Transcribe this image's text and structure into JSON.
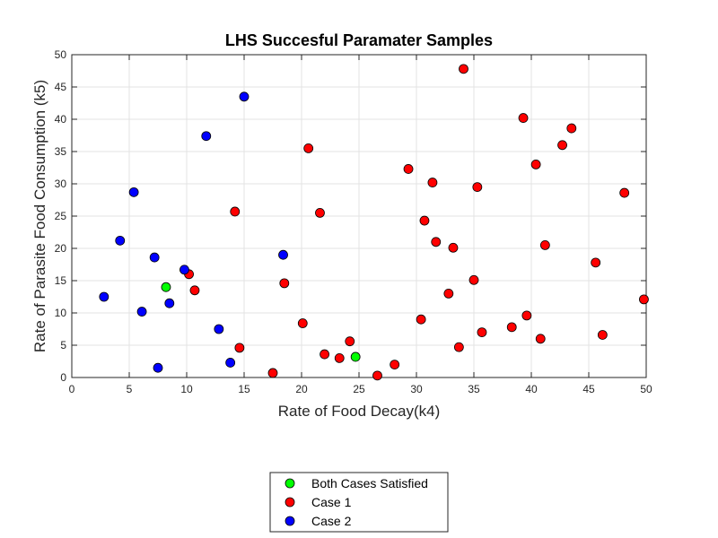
{
  "chart_data": {
    "type": "scatter",
    "title": "LHS Succesful Paramater Samples",
    "xlabel": "Rate of Food Decay(k4)",
    "ylabel": "Rate of Parasite Food Consumption (k5)",
    "xlim": [
      0,
      50
    ],
    "ylim": [
      0,
      50
    ],
    "xticks": [
      0,
      5,
      10,
      15,
      20,
      25,
      30,
      35,
      40,
      45,
      50
    ],
    "yticks": [
      0,
      5,
      10,
      15,
      20,
      25,
      30,
      35,
      40,
      45,
      50
    ],
    "grid": true,
    "legend_position": "bottom-center outside",
    "series": [
      {
        "name": "Both Cases Satisfied",
        "color": "#00ff00",
        "points": [
          [
            8.2,
            14.0
          ],
          [
            24.7,
            3.2
          ]
        ]
      },
      {
        "name": "Case 1",
        "color": "#ff0000",
        "points": [
          [
            10.2,
            16.0
          ],
          [
            10.7,
            13.5
          ],
          [
            14.2,
            25.7
          ],
          [
            14.6,
            4.6
          ],
          [
            17.5,
            0.7
          ],
          [
            18.5,
            14.6
          ],
          [
            20.1,
            8.4
          ],
          [
            20.6,
            35.5
          ],
          [
            21.6,
            25.5
          ],
          [
            22.0,
            3.6
          ],
          [
            23.3,
            3.0
          ],
          [
            24.2,
            5.6
          ],
          [
            26.6,
            0.3
          ],
          [
            28.1,
            2.0
          ],
          [
            29.3,
            32.3
          ],
          [
            30.4,
            9.0
          ],
          [
            30.7,
            24.3
          ],
          [
            31.4,
            30.2
          ],
          [
            31.7,
            21.0
          ],
          [
            32.8,
            13.0
          ],
          [
            33.2,
            20.1
          ],
          [
            33.7,
            4.7
          ],
          [
            34.1,
            47.8
          ],
          [
            35.0,
            15.1
          ],
          [
            35.3,
            29.5
          ],
          [
            35.7,
            7.0
          ],
          [
            38.3,
            7.8
          ],
          [
            39.3,
            40.2
          ],
          [
            39.6,
            9.6
          ],
          [
            40.4,
            33.0
          ],
          [
            40.8,
            6.0
          ],
          [
            41.2,
            20.5
          ],
          [
            42.7,
            36.0
          ],
          [
            43.5,
            38.6
          ],
          [
            45.6,
            17.8
          ],
          [
            46.2,
            6.6
          ],
          [
            48.1,
            28.6
          ],
          [
            49.8,
            12.1
          ]
        ]
      },
      {
        "name": "Case 2",
        "color": "#0000ff",
        "points": [
          [
            2.8,
            12.5
          ],
          [
            4.2,
            21.2
          ],
          [
            5.4,
            28.7
          ],
          [
            6.1,
            10.2
          ],
          [
            7.2,
            18.6
          ],
          [
            7.5,
            1.5
          ],
          [
            8.5,
            11.5
          ],
          [
            9.8,
            16.7
          ],
          [
            11.7,
            37.4
          ],
          [
            12.8,
            7.5
          ],
          [
            13.8,
            2.3
          ],
          [
            15.0,
            43.5
          ],
          [
            18.4,
            19.0
          ]
        ]
      }
    ]
  }
}
